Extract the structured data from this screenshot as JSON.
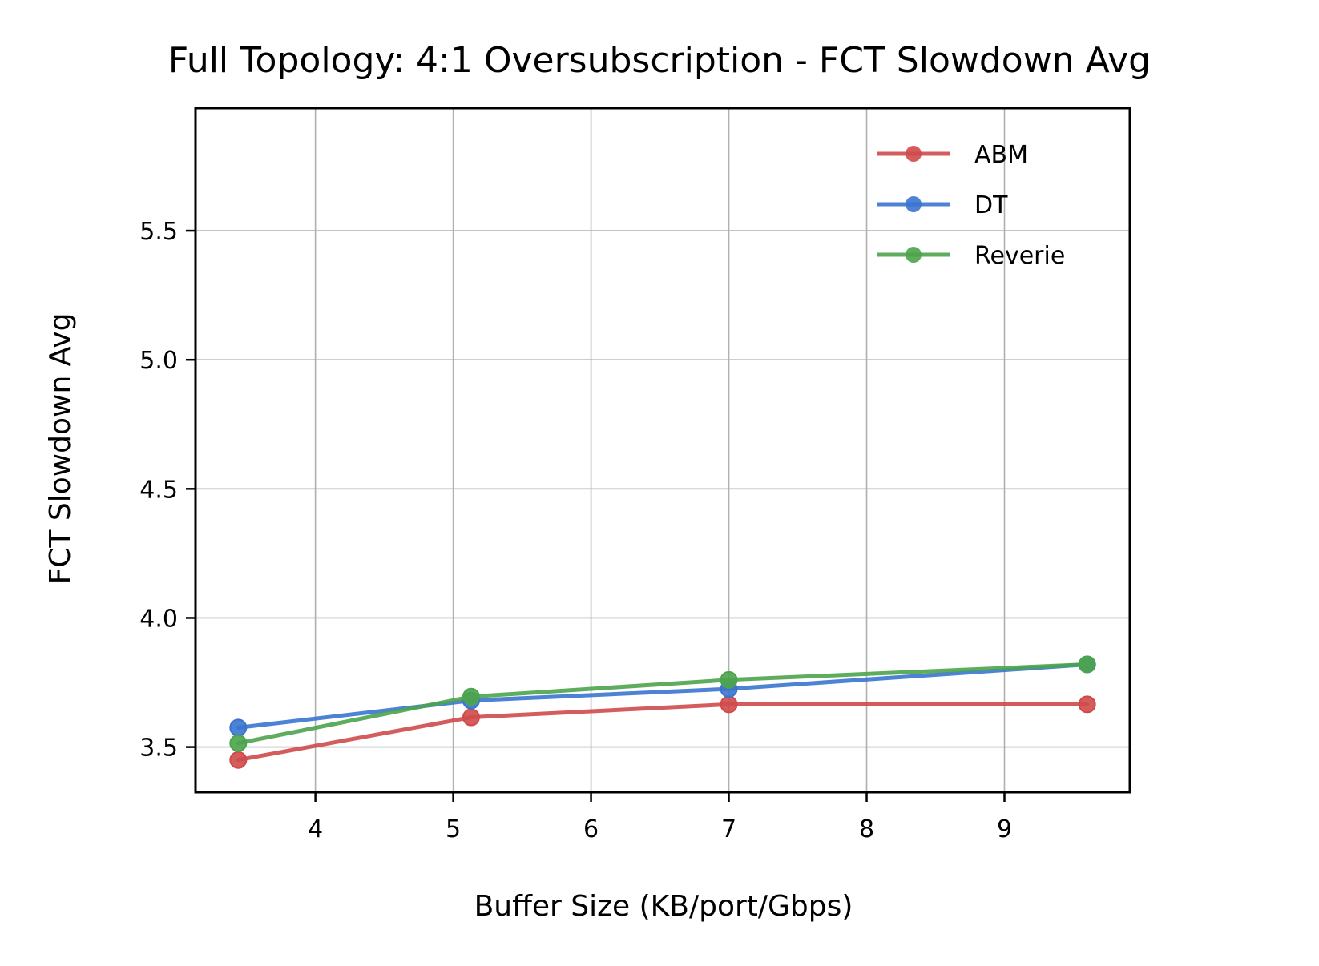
{
  "chart_data": {
    "type": "line",
    "title": "Full Topology: 4:1 Oversubscription - FCT Slowdown Avg",
    "xlabel": "Buffer Size (KB/port/Gbps)",
    "ylabel": "FCT Slowdown Avg",
    "xlim": [
      3.13,
      9.91
    ],
    "ylim": [
      3.325,
      5.975
    ],
    "xticks": [
      4,
      5,
      6,
      7,
      8,
      9
    ],
    "xtick_labels": [
      "4",
      "5",
      "6",
      "7",
      "8",
      "9"
    ],
    "yticks": [
      3.5,
      4.0,
      4.5,
      5.0,
      5.5
    ],
    "ytick_labels": [
      "3.5",
      "4.0",
      "4.5",
      "5.0",
      "5.5"
    ],
    "grid": true,
    "legend_position": "top-right",
    "series": [
      {
        "name": "ABM",
        "color": "#d04a4a",
        "x": [
          3.44,
          5.13,
          7.0,
          9.6
        ],
        "values": [
          3.45,
          3.615,
          3.665,
          3.665
        ]
      },
      {
        "name": "DT",
        "color": "#3a74d0",
        "x": [
          3.44,
          5.13,
          7.0,
          9.6
        ],
        "values": [
          3.575,
          3.68,
          3.725,
          3.82
        ]
      },
      {
        "name": "Reverie",
        "color": "#4ca44c",
        "x": [
          3.44,
          5.13,
          7.0,
          9.6
        ],
        "values": [
          3.515,
          3.695,
          3.76,
          3.82
        ]
      }
    ]
  }
}
